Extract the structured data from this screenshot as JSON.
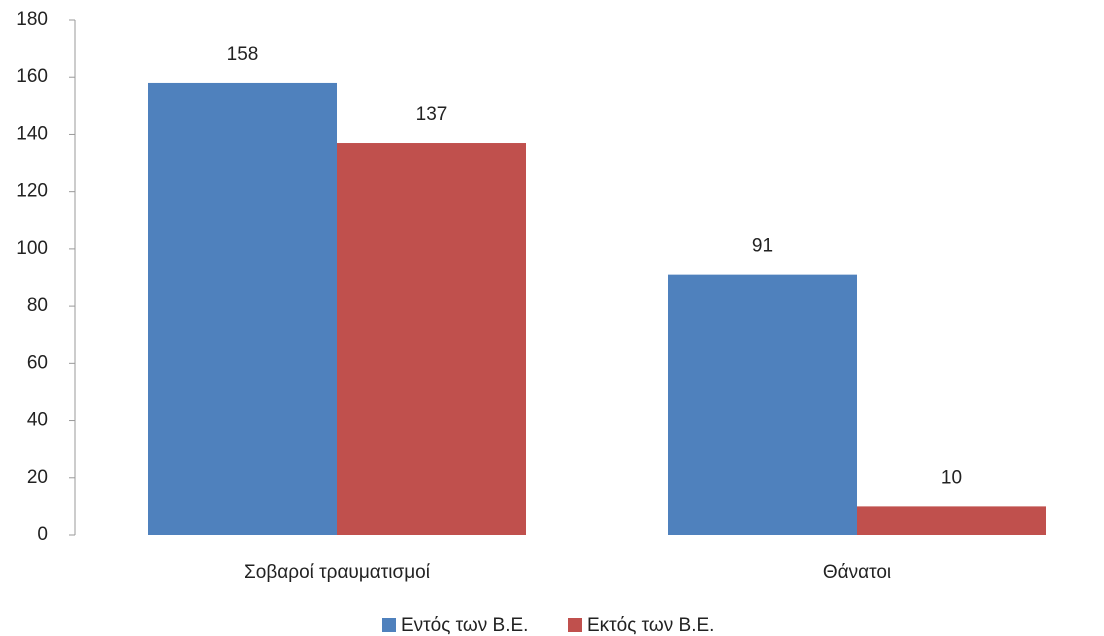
{
  "chart_data": {
    "type": "bar",
    "categories": [
      "Σοβαροί τραυματισμοί",
      "Θάνατοι"
    ],
    "series": [
      {
        "name": "Εντός των Β.Ε.",
        "color": "#4f81bd",
        "values": [
          158,
          91
        ]
      },
      {
        "name": "Εκτός των Β.Ε.",
        "color": "#c0504d",
        "values": [
          137,
          10
        ]
      }
    ],
    "ylim": [
      0,
      180
    ],
    "yticks": [
      0,
      20,
      40,
      60,
      80,
      100,
      120,
      140,
      160,
      180
    ],
    "grid": false,
    "legend": "bottom"
  }
}
